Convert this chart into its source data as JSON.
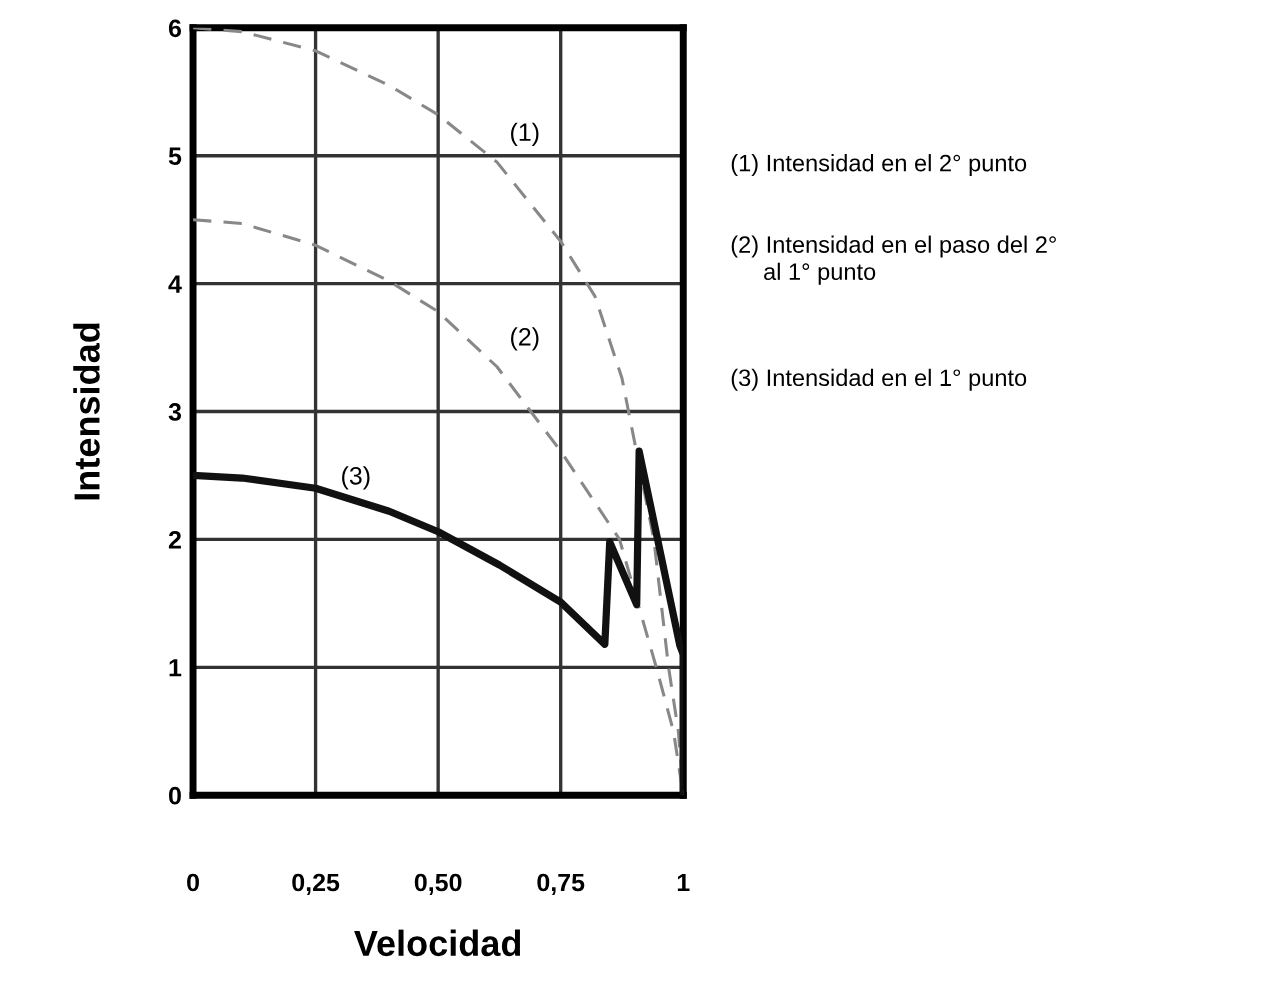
{
  "chart_data": {
    "type": "line",
    "xlabel": "Velocidad",
    "ylabel": "Intensidad",
    "xlim": [
      0,
      1
    ],
    "ylim": [
      0,
      6
    ],
    "xticks": [
      0,
      {
        "value": 0.25,
        "label": "0,25"
      },
      {
        "value": 0.5,
        "label": "0,50"
      },
      {
        "value": 0.75,
        "label": "0,75"
      },
      1
    ],
    "yticks": [
      0,
      1,
      2,
      3,
      4,
      5,
      6
    ],
    "grid": true,
    "series": [
      {
        "name": "(1)",
        "color": "#888888",
        "line_style": "dashed",
        "x": [
          0,
          0.1,
          0.25,
          0.4,
          0.5,
          0.62,
          0.75,
          0.82,
          0.875,
          0.94,
          0.97,
          0.99,
          1
        ],
        "values": [
          6,
          5.97,
          5.82,
          5.55,
          5.32,
          4.95,
          4.33,
          3.9,
          3.26,
          2.0,
          1.0,
          0.5,
          0
        ]
      },
      {
        "name": "(2)",
        "color": "#888888",
        "line_style": "dashed",
        "x": [
          0,
          0.1,
          0.25,
          0.4,
          0.5,
          0.62,
          0.75,
          0.87,
          0.945,
          0.98,
          1
        ],
        "values": [
          4.5,
          4.47,
          4.3,
          4.02,
          3.78,
          3.35,
          2.69,
          2.0,
          1.0,
          0.5,
          0
        ]
      },
      {
        "name": "(3)",
        "color": "#111111",
        "line_style": "solid",
        "x": [
          0,
          0.1,
          0.25,
          0.4,
          0.5,
          0.625,
          0.75,
          0.84,
          0.85,
          0.905,
          0.91,
          0.993,
          1,
          1
        ],
        "values": [
          2.5,
          2.48,
          2.4,
          2.22,
          2.06,
          1.8,
          1.51,
          1.18,
          1.98,
          1.49,
          2.69,
          1.17,
          1.1,
          0
        ]
      }
    ],
    "annotations": [
      "(1) Intensidad en el 2° punto",
      "(2) Intensidad en el paso del 2°\n     al 1° punto",
      "(3) Intensidad en el 1° punto"
    ]
  }
}
